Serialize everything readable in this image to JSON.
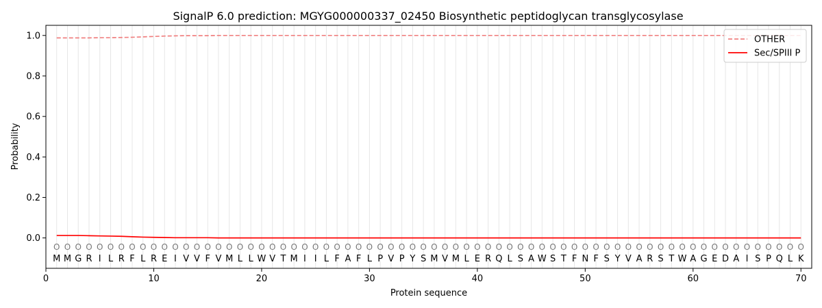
{
  "chart_data": {
    "type": "line",
    "title": "SignalP 6.0 prediction: MGYG000000337_02450 Biosynthetic peptidoglycan transglycosylase",
    "xlabel": "Protein sequence",
    "ylabel": "Probability",
    "xlim": [
      0,
      71
    ],
    "ylim": [
      -0.15,
      1.05
    ],
    "x_ticks": [
      0,
      10,
      20,
      30,
      40,
      50,
      60,
      70
    ],
    "y_ticks": [
      0.0,
      0.2,
      0.4,
      0.6,
      0.8,
      1.0
    ],
    "sequence": [
      "M",
      "M",
      "G",
      "R",
      "I",
      "L",
      "R",
      "F",
      "L",
      "R",
      "E",
      "I",
      "V",
      "V",
      "F",
      "V",
      "M",
      "L",
      "L",
      "W",
      "V",
      "T",
      "M",
      "I",
      "I",
      "L",
      "F",
      "A",
      "F",
      "L",
      "P",
      "V",
      "P",
      "Y",
      "S",
      "M",
      "V",
      "M",
      "L",
      "E",
      "R",
      "Q",
      "L",
      "S",
      "A",
      "W",
      "S",
      "T",
      "F",
      "N",
      "F",
      "S",
      "Y",
      "V",
      "A",
      "R",
      "S",
      "T",
      "W",
      "A",
      "G",
      "E",
      "D",
      "A",
      "I",
      "S",
      "P",
      "Q",
      "L",
      "K"
    ],
    "region_labels": [
      "O",
      "O",
      "O",
      "O",
      "O",
      "O",
      "O",
      "O",
      "O",
      "O",
      "O",
      "O",
      "O",
      "O",
      "O",
      "O",
      "O",
      "O",
      "O",
      "O",
      "O",
      "O",
      "O",
      "O",
      "O",
      "O",
      "O",
      "O",
      "O",
      "O",
      "O",
      "O",
      "O",
      "O",
      "O",
      "O",
      "O",
      "O",
      "O",
      "O",
      "O",
      "O",
      "O",
      "O",
      "O",
      "O",
      "O",
      "O",
      "O",
      "O",
      "O",
      "O",
      "O",
      "O",
      "O",
      "O",
      "O",
      "O",
      "O",
      "O",
      "O",
      "O",
      "O",
      "O",
      "O",
      "O",
      "O",
      "O",
      "O",
      "O"
    ],
    "series": [
      {
        "name": "OTHER",
        "color": "#f08080",
        "style": "dashed",
        "values": [
          0.988,
          0.988,
          0.988,
          0.988,
          0.989,
          0.989,
          0.99,
          0.991,
          0.993,
          0.995,
          0.997,
          0.998,
          0.999,
          0.999,
          0.999,
          1.0,
          1.0,
          1.0,
          1.0,
          1.0,
          1.0,
          1.0,
          1.0,
          1.0,
          1.0,
          1.0,
          1.0,
          1.0,
          1.0,
          1.0,
          1.0,
          1.0,
          1.0,
          1.0,
          1.0,
          1.0,
          1.0,
          1.0,
          1.0,
          1.0,
          1.0,
          1.0,
          1.0,
          1.0,
          1.0,
          1.0,
          1.0,
          1.0,
          1.0,
          1.0,
          1.0,
          1.0,
          1.0,
          1.0,
          1.0,
          1.0,
          1.0,
          1.0,
          1.0,
          1.0,
          1.0,
          1.0,
          1.0,
          1.0,
          1.0,
          1.0,
          1.0,
          1.0,
          1.0,
          1.0
        ]
      },
      {
        "name": "Sec/SPIII P",
        "color": "#ff0000",
        "style": "solid",
        "values": [
          0.012,
          0.012,
          0.012,
          0.011,
          0.01,
          0.009,
          0.008,
          0.006,
          0.004,
          0.003,
          0.002,
          0.001,
          0.001,
          0.001,
          0.001,
          0.0,
          0.0,
          0.0,
          0.0,
          0.0,
          0.0,
          0.0,
          0.0,
          0.0,
          0.0,
          0.0,
          0.0,
          0.0,
          0.0,
          0.0,
          0.0,
          0.0,
          0.0,
          0.0,
          0.0,
          0.0,
          0.0,
          0.0,
          0.0,
          0.0,
          0.0,
          0.0,
          0.0,
          0.0,
          0.0,
          0.0,
          0.0,
          0.0,
          0.0,
          0.0,
          0.0,
          0.0,
          0.0,
          0.0,
          0.0,
          0.0,
          0.0,
          0.0,
          0.0,
          0.0,
          0.0,
          0.0,
          0.0,
          0.0,
          0.0,
          0.0,
          0.0,
          0.0,
          0.0,
          0.0
        ]
      }
    ],
    "legend_position": "top-right",
    "grid": "vertical per residue"
  }
}
